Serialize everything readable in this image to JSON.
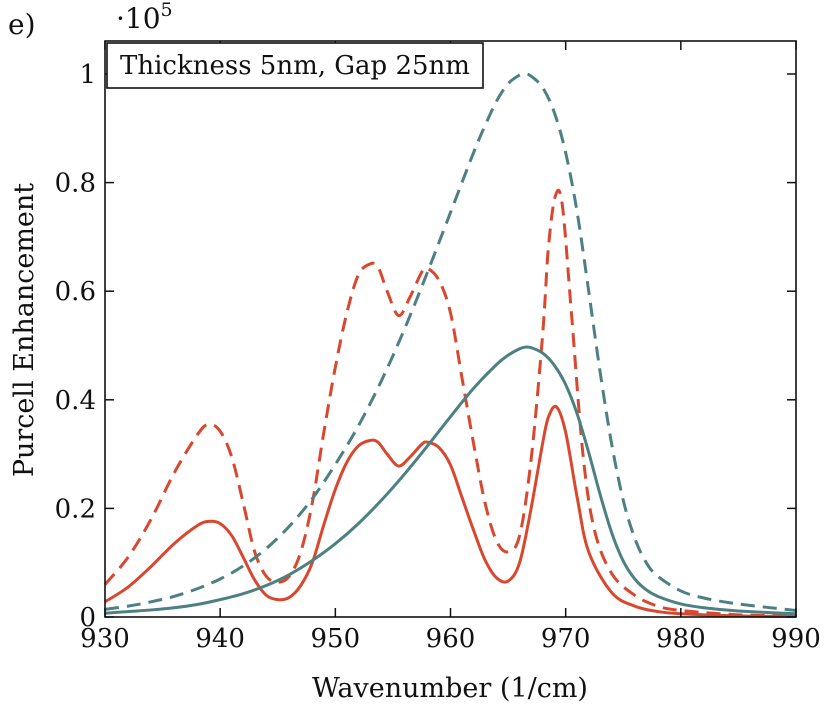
{
  "chart_data": {
    "type": "line",
    "panel_label": "e)",
    "y_scale_factor": {
      "base": "·10",
      "exponent": "5"
    },
    "title": "Thickness 5nm, Gap 25nm",
    "xlabel": "Wavenumber (1/cm)",
    "ylabel": "Purcell Enhancement",
    "xlim": [
      930,
      990
    ],
    "ylim": [
      0,
      1.05
    ],
    "xticks": [
      930,
      940,
      950,
      960,
      970,
      980,
      990
    ],
    "xtick_labels": [
      "930",
      "940",
      "950",
      "960",
      "970",
      "980",
      "990"
    ],
    "yticks": [
      0,
      0.2,
      0.4,
      0.6,
      0.8,
      1
    ],
    "ytick_labels": [
      "0",
      "0.2",
      "0.4",
      "0.6",
      "0.8",
      "1"
    ],
    "grid": false,
    "colors": {
      "red": "#d9472f",
      "teal": "#4d8082"
    },
    "series": [
      {
        "name": "red-solid",
        "color": "#d9472f",
        "dash": false,
        "x": [
          930,
          932,
          934,
          936,
          938,
          939,
          940,
          941,
          942,
          943,
          944,
          945,
          946,
          947,
          948,
          949,
          950,
          951,
          952,
          953,
          953.7,
          954.5,
          955.5,
          956.5,
          957.5,
          958,
          959,
          960,
          961,
          962,
          963,
          964,
          965,
          966,
          967,
          968,
          968.5,
          969.2,
          970,
          971,
          972,
          974,
          976,
          978,
          980,
          985,
          990
        ],
        "y": [
          0.028,
          0.055,
          0.093,
          0.135,
          0.168,
          0.176,
          0.172,
          0.15,
          0.11,
          0.068,
          0.04,
          0.032,
          0.036,
          0.058,
          0.1,
          0.17,
          0.235,
          0.285,
          0.315,
          0.325,
          0.322,
          0.3,
          0.278,
          0.295,
          0.318,
          0.322,
          0.312,
          0.28,
          0.22,
          0.16,
          0.105,
          0.072,
          0.066,
          0.1,
          0.2,
          0.32,
          0.368,
          0.387,
          0.34,
          0.22,
          0.12,
          0.045,
          0.02,
          0.01,
          0.006,
          0.002,
          0.001
        ]
      },
      {
        "name": "red-dashed",
        "color": "#d9472f",
        "dash": true,
        "x": [
          930,
          932,
          934,
          936,
          938,
          939,
          940,
          941,
          942,
          943,
          944,
          945,
          946,
          947,
          948,
          949,
          950,
          951,
          952,
          953,
          953.7,
          954.5,
          955.5,
          956.5,
          957.5,
          958,
          959,
          960,
          961,
          962,
          963,
          964,
          965,
          966,
          967,
          968,
          968.5,
          969.1,
          969.7,
          970.5,
          971.5,
          972.5,
          974,
          976,
          978,
          980,
          985,
          990
        ],
        "y": [
          0.06,
          0.11,
          0.18,
          0.265,
          0.335,
          0.355,
          0.342,
          0.295,
          0.21,
          0.12,
          0.075,
          0.064,
          0.075,
          0.12,
          0.21,
          0.34,
          0.46,
          0.56,
          0.63,
          0.65,
          0.645,
          0.6,
          0.555,
          0.59,
          0.635,
          0.642,
          0.62,
          0.56,
          0.44,
          0.32,
          0.21,
          0.14,
          0.12,
          0.15,
          0.29,
          0.52,
          0.68,
          0.775,
          0.76,
          0.56,
          0.3,
          0.16,
          0.08,
          0.04,
          0.02,
          0.012,
          0.004,
          0.002
        ]
      },
      {
        "name": "teal-solid",
        "color": "#4d8082",
        "dash": false,
        "x": [
          930,
          932,
          934,
          936,
          938,
          940,
          942,
          944,
          946,
          948,
          950,
          952,
          954,
          956,
          958,
          960,
          962,
          964,
          965,
          966,
          966.5,
          967,
          968,
          969,
          970,
          971,
          972,
          973,
          974,
          975,
          976,
          977,
          978,
          980,
          982,
          985,
          990
        ],
        "y": [
          0.007,
          0.01,
          0.013,
          0.017,
          0.023,
          0.032,
          0.043,
          0.058,
          0.078,
          0.104,
          0.135,
          0.172,
          0.215,
          0.263,
          0.315,
          0.369,
          0.421,
          0.465,
          0.482,
          0.494,
          0.497,
          0.496,
          0.486,
          0.464,
          0.428,
          0.374,
          0.303,
          0.225,
          0.155,
          0.103,
          0.07,
          0.05,
          0.038,
          0.024,
          0.017,
          0.011,
          0.006
        ]
      },
      {
        "name": "teal-dashed",
        "color": "#4d8082",
        "dash": true,
        "x": [
          930,
          932,
          934,
          936,
          938,
          940,
          942,
          944,
          946,
          948,
          950,
          952,
          954,
          956,
          958,
          960,
          962,
          963,
          964,
          965,
          966,
          966.5,
          967,
          968,
          969,
          970,
          971,
          972,
          973,
          974,
          975,
          976,
          977,
          978,
          980,
          982,
          985,
          990
        ],
        "y": [
          0.014,
          0.02,
          0.028,
          0.038,
          0.052,
          0.07,
          0.094,
          0.126,
          0.167,
          0.218,
          0.281,
          0.352,
          0.435,
          0.53,
          0.635,
          0.745,
          0.855,
          0.905,
          0.95,
          0.982,
          0.998,
          1.0,
          0.996,
          0.975,
          0.93,
          0.855,
          0.745,
          0.6,
          0.45,
          0.318,
          0.215,
          0.145,
          0.1,
          0.075,
          0.048,
          0.035,
          0.024,
          0.012
        ]
      }
    ]
  }
}
